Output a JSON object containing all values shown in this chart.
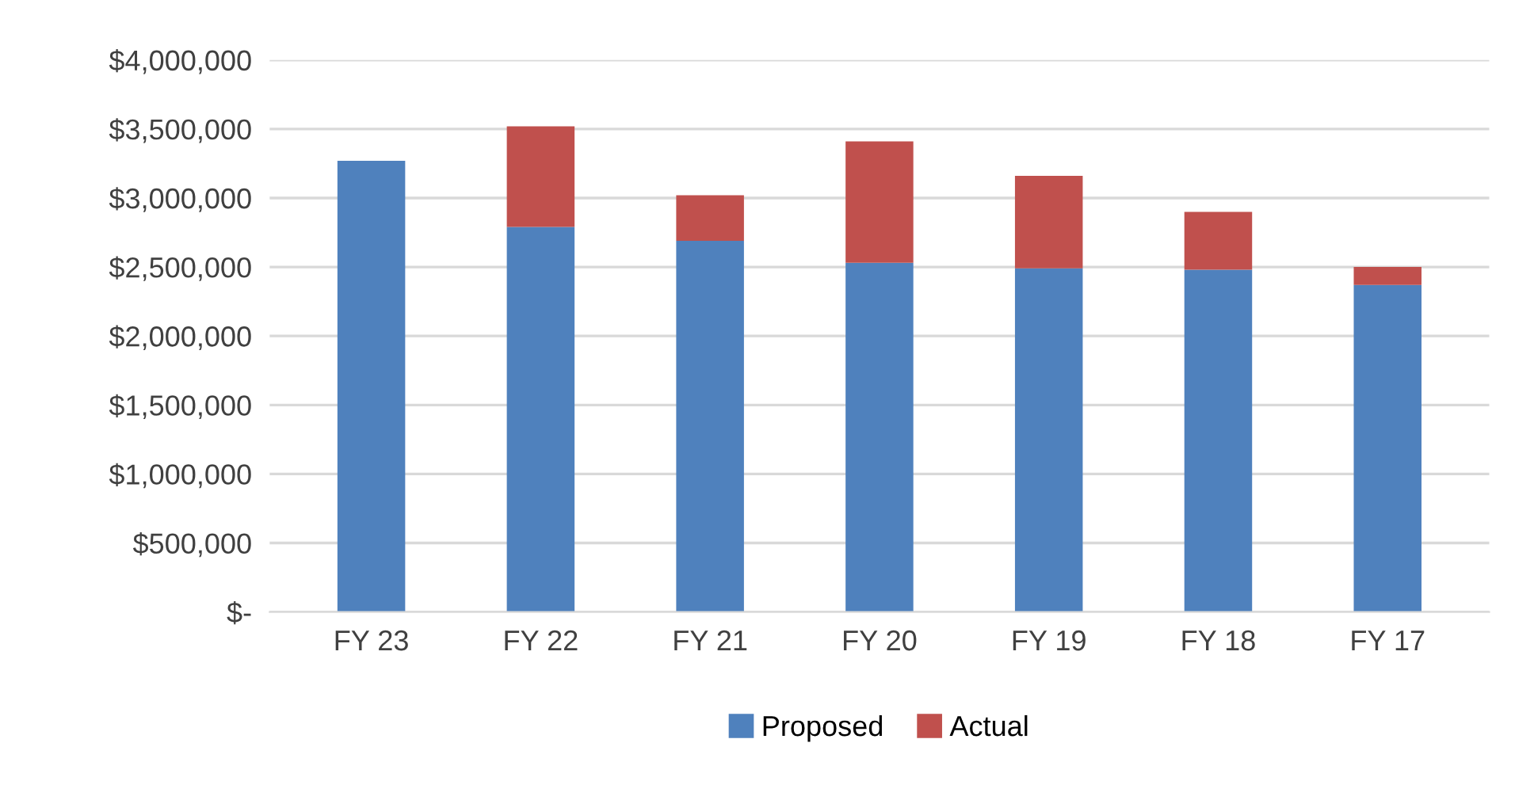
{
  "chart_data": {
    "type": "bar",
    "stacked": true,
    "categories": [
      "FY 23",
      "FY 22",
      "FY 21",
      "FY 20",
      "FY 19",
      "FY 18",
      "FY 17"
    ],
    "series": [
      {
        "name": "Proposed",
        "color": "#4f81bd",
        "values": [
          3270000,
          2790000,
          2690000,
          2530000,
          2490000,
          2480000,
          2370000
        ]
      },
      {
        "name": "Actual",
        "color": "#c0504d",
        "values": [
          null,
          730000,
          330000,
          880000,
          670000,
          420000,
          130000
        ]
      }
    ],
    "ylim": [
      0,
      4000000
    ],
    "yticks": [
      {
        "value": 0,
        "label": "$-"
      },
      {
        "value": 500000,
        "label": "$500,000"
      },
      {
        "value": 1000000,
        "label": "$1,000,000"
      },
      {
        "value": 1500000,
        "label": "$1,500,000"
      },
      {
        "value": 2000000,
        "label": "$2,000,000"
      },
      {
        "value": 2500000,
        "label": "$2,500,000"
      },
      {
        "value": 3000000,
        "label": "$3,000,000"
      },
      {
        "value": 3500000,
        "label": "$3,500,000"
      },
      {
        "value": 4000000,
        "label": "$4,000,000"
      }
    ],
    "grid": "y",
    "legend": "bottom"
  }
}
